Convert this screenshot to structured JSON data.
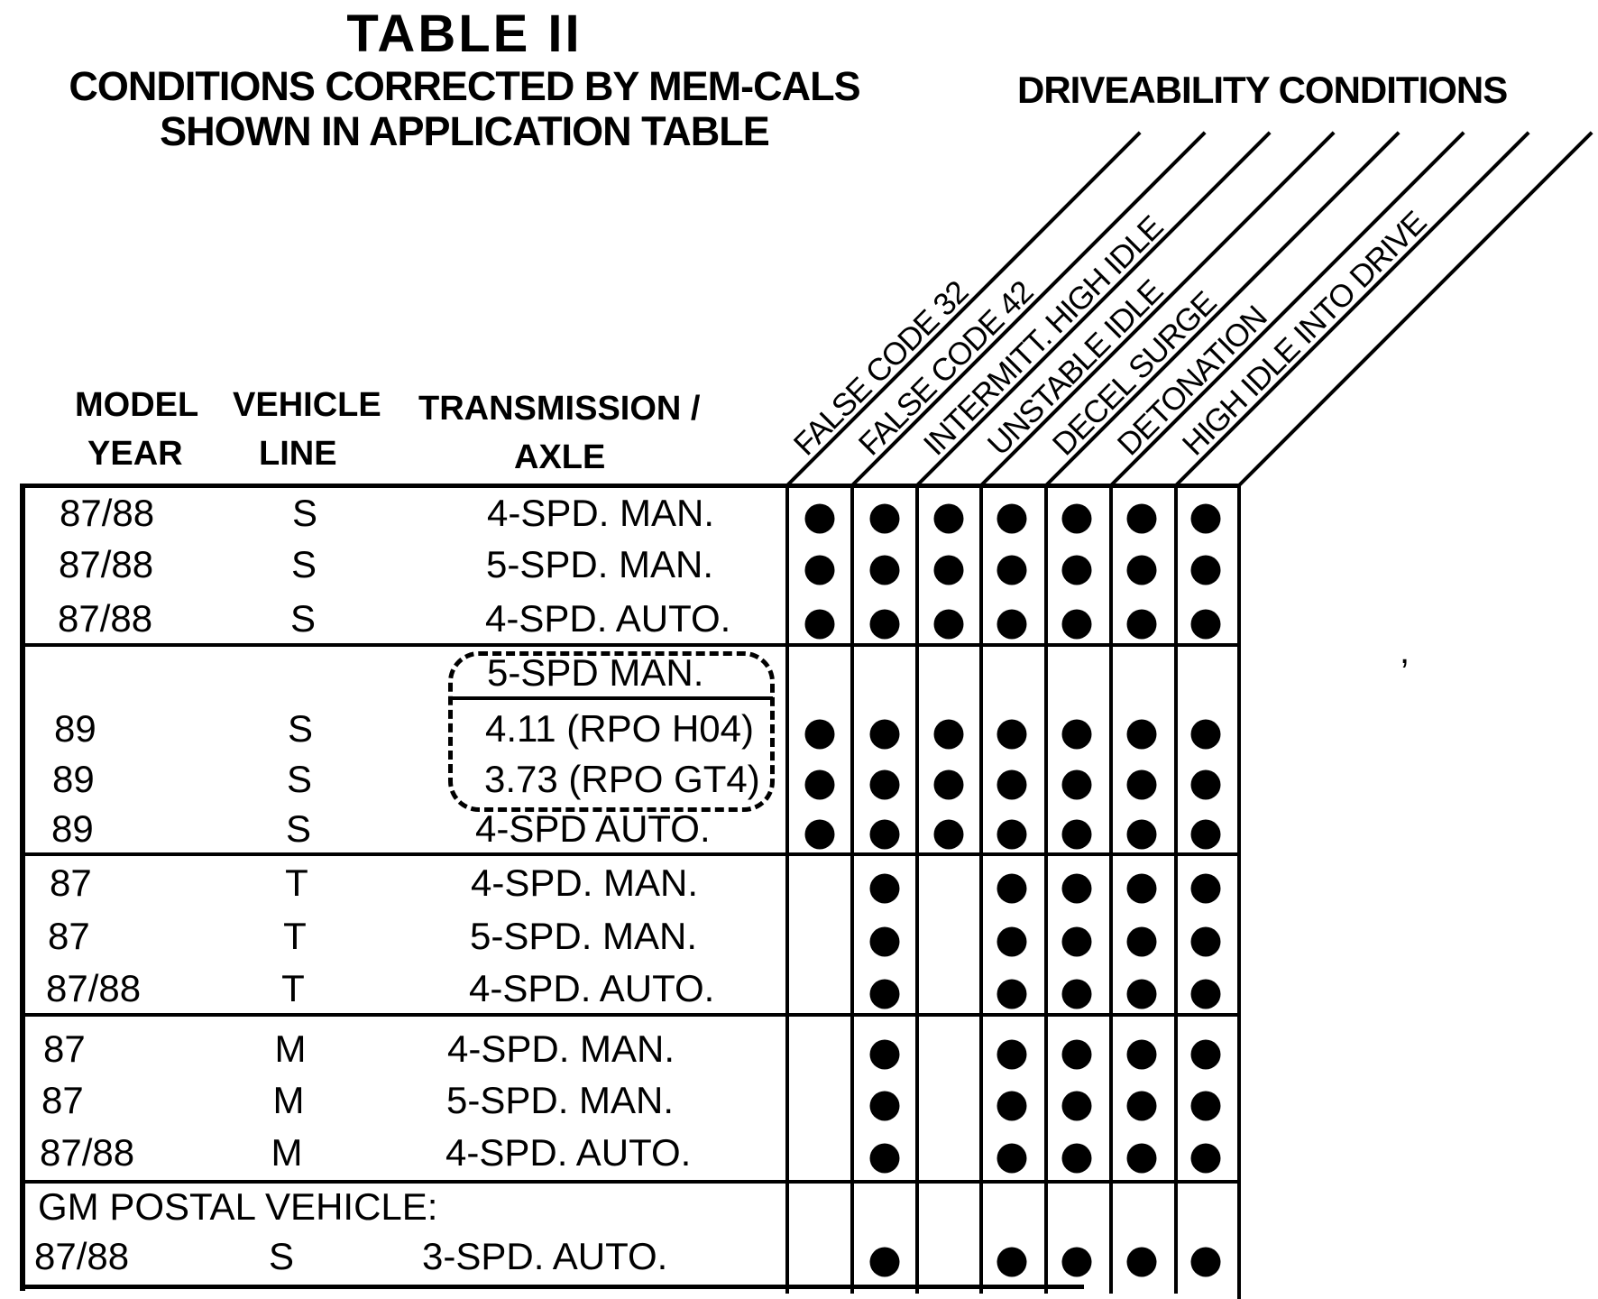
{
  "title": "TABLE II",
  "subtitle_line1": "CONDITIONS CORRECTED BY MEM-CALS",
  "subtitle_line2": "SHOWN IN APPLICATION TABLE",
  "conditions_header": "DRIVEABILITY CONDITIONS",
  "columns": {
    "model_year": [
      "MODEL",
      "YEAR"
    ],
    "vehicle_line": [
      "VEHICLE",
      "LINE"
    ],
    "transmission": [
      "TRANSMISSION /",
      "AXLE"
    ]
  },
  "condition_columns": [
    "FALSE CODE 32",
    "FALSE CODE 42",
    "INTERMITT. HIGH IDLE",
    "UNSTABLE IDLE",
    "DECEL SURGE",
    "DETONATION",
    "HIGH IDLE INTO DRIVE"
  ],
  "groups": [
    {
      "rows": [
        {
          "year": "87/88",
          "line": "S",
          "trans": "4-SPD. MAN.",
          "dots": [
            1,
            1,
            1,
            1,
            1,
            1,
            1
          ]
        },
        {
          "year": "87/88",
          "line": "S",
          "trans": "5-SPD. MAN.",
          "dots": [
            1,
            1,
            1,
            1,
            1,
            1,
            1
          ]
        },
        {
          "year": "87/88",
          "line": "S",
          "trans": "4-SPD. AUTO.",
          "dots": [
            1,
            1,
            1,
            1,
            1,
            1,
            1
          ]
        }
      ]
    },
    {
      "boxed_header": "5-SPD MAN.",
      "rows": [
        {
          "year": "89",
          "line": "S",
          "trans": "4.11 (RPO H04)",
          "dots": [
            1,
            1,
            1,
            1,
            1,
            1,
            1
          ],
          "boxed": true
        },
        {
          "year": "89",
          "line": "S",
          "trans": "3.73 (RPO GT4)",
          "dots": [
            1,
            1,
            1,
            1,
            1,
            1,
            1
          ],
          "boxed": true
        },
        {
          "year": "89",
          "line": "S",
          "trans": "4-SPD AUTO.",
          "dots": [
            1,
            1,
            1,
            1,
            1,
            1,
            1
          ]
        }
      ]
    },
    {
      "rows": [
        {
          "year": "87",
          "line": "T",
          "trans": "4-SPD. MAN.",
          "dots": [
            0,
            1,
            0,
            1,
            1,
            1,
            1
          ]
        },
        {
          "year": "87",
          "line": "T",
          "trans": "5-SPD. MAN.",
          "dots": [
            0,
            1,
            0,
            1,
            1,
            1,
            1
          ]
        },
        {
          "year": "87/88",
          "line": "T",
          "trans": "4-SPD. AUTO.",
          "dots": [
            0,
            1,
            0,
            1,
            1,
            1,
            1
          ]
        }
      ]
    },
    {
      "rows": [
        {
          "year": "87",
          "line": "M",
          "trans": "4-SPD. MAN.",
          "dots": [
            0,
            1,
            0,
            1,
            1,
            1,
            1
          ]
        },
        {
          "year": "87",
          "line": "M",
          "trans": "5-SPD. MAN.",
          "dots": [
            0,
            1,
            0,
            1,
            1,
            1,
            1
          ]
        },
        {
          "year": "87/88",
          "line": "M",
          "trans": "4-SPD. AUTO.",
          "dots": [
            0,
            1,
            0,
            1,
            1,
            1,
            1
          ]
        }
      ]
    },
    {
      "section_label": "GM POSTAL VEHICLE:",
      "rows": [
        {
          "year": "87/88",
          "line": "S",
          "trans": "3-SPD. AUTO.",
          "dots": [
            0,
            1,
            0,
            1,
            1,
            1,
            1
          ]
        }
      ]
    }
  ],
  "misc": {
    "stray_mark": ","
  },
  "colors": {
    "ink": "#000000",
    "paper": "#ffffff"
  }
}
